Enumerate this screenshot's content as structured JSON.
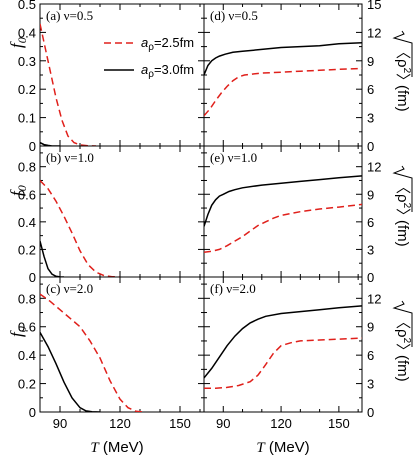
{
  "figure": {
    "x_axis_title_italic": "T",
    "x_axis_title_rest": " (MeV)",
    "left_ylabel": "f",
    "left_ylabel_sub": "0",
    "right_ylabel_rho": "ρ",
    "right_ylabel_exp": "2",
    "right_ylabel_unit": "(fm)",
    "legend": {
      "dashed_prefix": "a",
      "dashed_sub": "ρ",
      "dashed_suffix": "=2.5fm",
      "solid_prefix": "a",
      "solid_sub": "ρ",
      "solid_suffix": "=3.0fm"
    },
    "colors": {
      "dashed": "#e0201b",
      "solid": "#000000"
    }
  },
  "chart_data": [
    {
      "type": "line",
      "panel": "a",
      "label": "(a) ν=0.5",
      "ylabel": "f0",
      "xlim": [
        80,
        162
      ],
      "ylim": [
        0,
        0.5
      ],
      "xticks": [
        90,
        120,
        150
      ],
      "xtick_labels": [
        "90",
        "120",
        "150"
      ],
      "show_xtick_labels": false,
      "yticks": [
        0,
        0.1,
        0.2,
        0.3,
        0.4,
        0.5
      ],
      "ytick_labels": [
        "0",
        "0.1",
        "0.2",
        "0.3",
        "0.4",
        "0.5"
      ],
      "series": [
        {
          "name": "aρ=2.5fm",
          "style": "dashed",
          "x": [
            80,
            84,
            88,
            91,
            94,
            97,
            100,
            104,
            108
          ],
          "y": [
            0.43,
            0.3,
            0.17,
            0.09,
            0.035,
            0.012,
            0.004,
            0.001,
            0
          ]
        },
        {
          "name": "aρ=3.0fm",
          "style": "solid",
          "x": [
            80,
            82,
            84,
            86,
            90
          ],
          "y": [
            0.012,
            0.005,
            0.002,
            0,
            0
          ]
        }
      ]
    },
    {
      "type": "line",
      "panel": "b",
      "label": "(b) ν=1.0",
      "ylabel": "f0",
      "xlim": [
        80,
        162
      ],
      "ylim": [
        0,
        0.95
      ],
      "xticks": [
        90,
        120,
        150
      ],
      "xtick_labels": [
        "90",
        "120",
        "150"
      ],
      "show_xtick_labels": false,
      "yticks": [
        0,
        0.2,
        0.4,
        0.6,
        0.8
      ],
      "ytick_labels": [
        "0",
        "0.2",
        "0.4",
        "0.6",
        "0.8"
      ],
      "series": [
        {
          "name": "aρ=2.5fm",
          "style": "dashed",
          "x": [
            80,
            84,
            88,
            92,
            96,
            100,
            104,
            108,
            112,
            116,
            120
          ],
          "y": [
            0.7,
            0.64,
            0.55,
            0.44,
            0.32,
            0.19,
            0.09,
            0.035,
            0.01,
            0.002,
            0
          ]
        },
        {
          "name": "aρ=3.0fm",
          "style": "solid",
          "x": [
            80,
            82,
            84,
            86,
            88,
            90,
            92
          ],
          "y": [
            0.26,
            0.15,
            0.06,
            0.02,
            0.005,
            0.001,
            0
          ]
        }
      ]
    },
    {
      "type": "line",
      "panel": "c",
      "label": "(c) ν=2.0",
      "ylabel": "f0",
      "xlim": [
        80,
        162
      ],
      "ylim": [
        0,
        0.95
      ],
      "xticks": [
        90,
        120,
        150
      ],
      "xtick_labels": [
        "90",
        "120",
        "150"
      ],
      "show_xtick_labels": true,
      "yticks": [
        0,
        0.2,
        0.4,
        0.6,
        0.8
      ],
      "ytick_labels": [
        "0",
        "0.2",
        "0.4",
        "0.6",
        "0.8"
      ],
      "series": [
        {
          "name": "aρ=2.5fm",
          "style": "dashed",
          "x": [
            80,
            85,
            90,
            95,
            100,
            105,
            110,
            115,
            120,
            124,
            128,
            132
          ],
          "y": [
            0.83,
            0.78,
            0.72,
            0.66,
            0.6,
            0.5,
            0.38,
            0.22,
            0.09,
            0.03,
            0.005,
            0
          ]
        },
        {
          "name": "aρ=3.0fm",
          "style": "solid",
          "x": [
            80,
            84,
            88,
            92,
            96,
            100,
            103,
            106,
            110
          ],
          "y": [
            0.56,
            0.46,
            0.34,
            0.21,
            0.1,
            0.03,
            0.008,
            0.002,
            0
          ]
        }
      ]
    },
    {
      "type": "line",
      "panel": "d",
      "label": "(d) ν=0.5",
      "ylabel": "sqrt(<ρ^2>) (fm)",
      "xlim": [
        80,
        162
      ],
      "ylim": [
        0,
        15
      ],
      "xticks": [
        90,
        120,
        150
      ],
      "xtick_labels": [
        "90",
        "120",
        "150"
      ],
      "show_xtick_labels": false,
      "yticks": [
        0,
        3,
        6,
        9,
        12,
        15
      ],
      "ytick_labels": [
        "0",
        "3",
        "6",
        "9",
        "12",
        "15"
      ],
      "series": [
        {
          "name": "aρ=2.5fm",
          "style": "dashed",
          "x": [
            80,
            83,
            86,
            89,
            92,
            95,
            98,
            101,
            105,
            110,
            120,
            130,
            140,
            150,
            162
          ],
          "y": [
            3.2,
            3.9,
            4.8,
            5.6,
            6.3,
            6.9,
            7.3,
            7.5,
            7.6,
            7.7,
            7.8,
            7.9,
            8.0,
            8.1,
            8.2
          ]
        },
        {
          "name": "aρ=3.0fm",
          "style": "solid",
          "x": [
            80,
            82,
            84,
            86,
            88,
            91,
            95,
            100,
            110,
            120,
            130,
            140,
            150,
            162
          ],
          "y": [
            7.5,
            8.5,
            9.0,
            9.3,
            9.5,
            9.7,
            9.9,
            10.0,
            10.2,
            10.4,
            10.5,
            10.6,
            10.8,
            10.9
          ]
        }
      ]
    },
    {
      "type": "line",
      "panel": "e",
      "label": "(e) ν=1.0",
      "ylabel": "sqrt(<ρ^2>) (fm)",
      "xlim": [
        80,
        162
      ],
      "ylim": [
        0,
        14.25
      ],
      "xticks": [
        90,
        120,
        150
      ],
      "xtick_labels": [
        "90",
        "120",
        "150"
      ],
      "show_xtick_labels": false,
      "yticks": [
        0,
        3,
        6,
        9,
        12
      ],
      "ytick_labels": [
        "0",
        "3",
        "6",
        "9",
        "12"
      ],
      "series": [
        {
          "name": "aρ=2.5fm",
          "style": "dashed",
          "x": [
            80,
            84,
            88,
            92,
            96,
            100,
            104,
            108,
            112,
            116,
            120,
            130,
            140,
            150,
            162
          ],
          "y": [
            2.7,
            2.8,
            3.0,
            3.4,
            3.9,
            4.4,
            5.0,
            5.6,
            6.0,
            6.4,
            6.7,
            7.1,
            7.4,
            7.6,
            7.9
          ]
        },
        {
          "name": "aρ=3.0fm",
          "style": "solid",
          "x": [
            80,
            82,
            84,
            86,
            88,
            90,
            93,
            96,
            100,
            110,
            120,
            130,
            140,
            150,
            162
          ],
          "y": [
            5.5,
            6.8,
            7.8,
            8.4,
            8.8,
            9.0,
            9.3,
            9.5,
            9.7,
            10.0,
            10.2,
            10.4,
            10.6,
            10.8,
            11.0
          ]
        }
      ]
    },
    {
      "type": "line",
      "panel": "f",
      "label": "(f) ν=2.0",
      "ylabel": "sqrt(<ρ^2>) (fm)",
      "xlim": [
        80,
        162
      ],
      "ylim": [
        0,
        14.25
      ],
      "xticks": [
        90,
        120,
        150
      ],
      "xtick_labels": [
        "90",
        "120",
        "150"
      ],
      "show_xtick_labels": true,
      "yticks": [
        0,
        3,
        6,
        9,
        12
      ],
      "ytick_labels": [
        "0",
        "3",
        "6",
        "9",
        "12"
      ],
      "series": [
        {
          "name": "aρ=2.5fm",
          "style": "dashed",
          "x": [
            80,
            86,
            92,
            98,
            104,
            108,
            112,
            116,
            120,
            125,
            130,
            140,
            150,
            162
          ],
          "y": [
            2.5,
            2.5,
            2.6,
            2.8,
            3.2,
            3.9,
            5.0,
            6.2,
            7.0,
            7.3,
            7.5,
            7.6,
            7.7,
            7.8
          ]
        },
        {
          "name": "aρ=3.0fm",
          "style": "solid",
          "x": [
            80,
            84,
            88,
            92,
            96,
            100,
            104,
            108,
            112,
            120,
            130,
            140,
            150,
            162
          ],
          "y": [
            3.6,
            4.6,
            5.8,
            7.0,
            8.0,
            8.8,
            9.4,
            9.8,
            10.1,
            10.4,
            10.6,
            10.8,
            11.0,
            11.2
          ]
        }
      ]
    }
  ]
}
